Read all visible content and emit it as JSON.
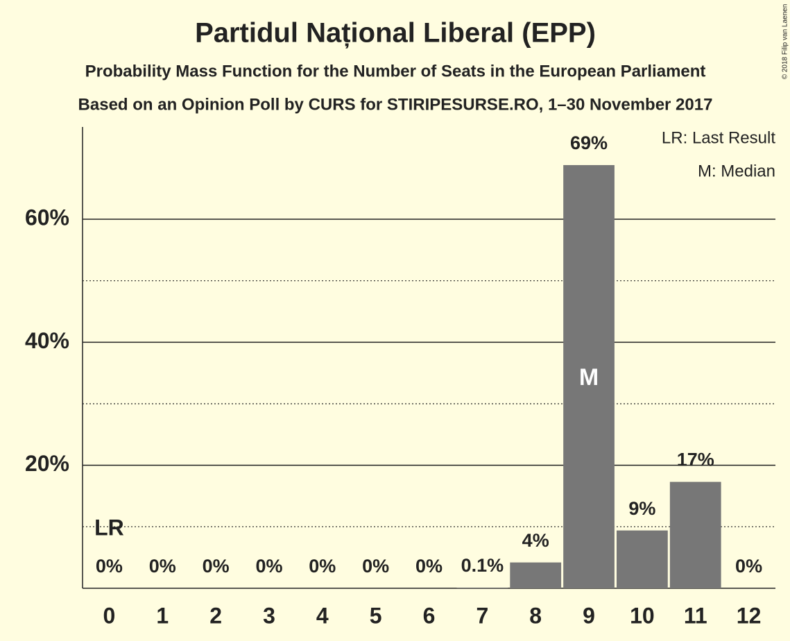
{
  "chart_data": {
    "type": "bar",
    "title": "Partidul Național Liberal (EPP)",
    "subtitle": "Probability Mass Function for the Number of Seats in the European Parliament",
    "subtitle2": "Based on an Opinion Poll by CURS for STIRIPESURSE.RO, 1–30 November 2017",
    "copyright": "© 2018 Filip van Laenen",
    "categories": [
      "0",
      "1",
      "2",
      "3",
      "4",
      "5",
      "6",
      "7",
      "8",
      "9",
      "10",
      "11",
      "12"
    ],
    "values": [
      0,
      0,
      0,
      0,
      0,
      0,
      0,
      0.1,
      4.2,
      68.8,
      9.4,
      17.3,
      0
    ],
    "value_labels": [
      "0%",
      "0%",
      "0%",
      "0%",
      "0%",
      "0%",
      "0%",
      "0.1%",
      "4%",
      "69%",
      "9%",
      "17%",
      "0%"
    ],
    "color": "#777777",
    "ylim": [
      0,
      75
    ],
    "yticks": [
      {
        "value": 20,
        "label": "20%"
      },
      {
        "value": 40,
        "label": "40%"
      },
      {
        "value": 60,
        "label": "60%"
      }
    ],
    "minor_yticks": [
      10,
      30,
      50
    ],
    "grid": true,
    "last_result": {
      "index": 0,
      "label": "LR"
    },
    "median": {
      "index": 9,
      "label": "M"
    },
    "legend": [
      "LR: Last Result",
      "M: Median"
    ]
  }
}
